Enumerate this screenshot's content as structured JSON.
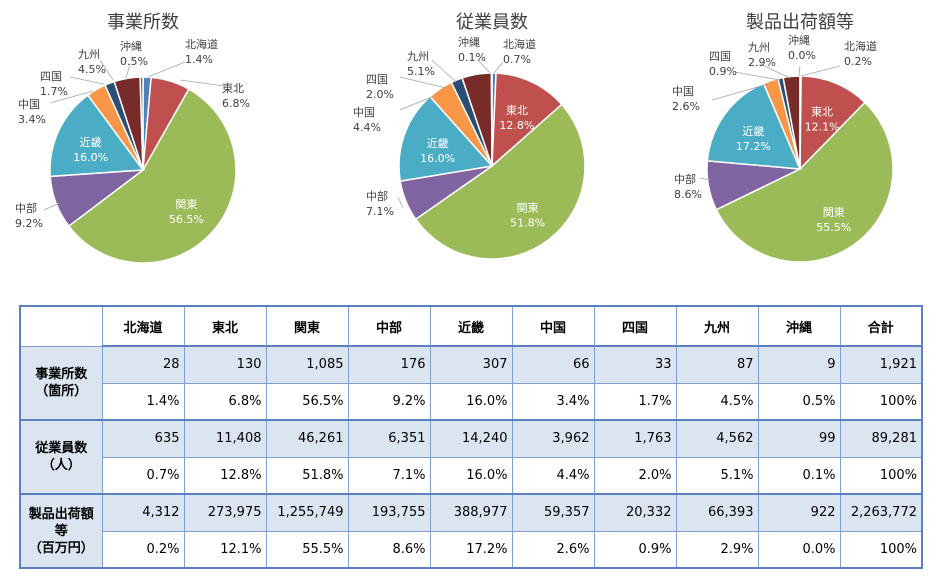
{
  "colors": {
    "北海道": "#4f81bd",
    "東北": "#c0504d",
    "関東": "#9bbb59",
    "中部": "#8064a2",
    "近畿": "#4bacc6",
    "中国": "#f79646",
    "四国": "#2c4d75",
    "九州": "#772c2a",
    "沖縄": "#5f7530"
  },
  "chart_data": [
    {
      "type": "pie",
      "title": "事業所数",
      "categories": [
        "北海道",
        "東北",
        "関東",
        "中部",
        "近畿",
        "中国",
        "四国",
        "九州",
        "沖縄"
      ],
      "values": [
        1.4,
        6.8,
        56.5,
        9.2,
        16.0,
        3.4,
        1.7,
        4.5,
        0.5
      ],
      "labels": [
        "1.4%",
        "6.8%",
        "56.5%",
        "9.2%",
        "16.0%",
        "3.4%",
        "1.7%",
        "4.5%",
        "0.5%"
      ]
    },
    {
      "type": "pie",
      "title": "従業員数",
      "categories": [
        "北海道",
        "東北",
        "関東",
        "中部",
        "近畿",
        "中国",
        "四国",
        "九州",
        "沖縄"
      ],
      "values": [
        0.7,
        12.8,
        51.8,
        7.1,
        16.0,
        4.4,
        2.0,
        5.1,
        0.1
      ],
      "labels": [
        "0.7%",
        "12.8%",
        "51.8%",
        "7.1%",
        "16.0%",
        "4.4%",
        "2.0%",
        "5.1%",
        "0.1%"
      ]
    },
    {
      "type": "pie",
      "title": "製品出荷額等",
      "categories": [
        "北海道",
        "東北",
        "関東",
        "中部",
        "近畿",
        "中国",
        "四国",
        "九州",
        "沖縄"
      ],
      "values": [
        0.2,
        12.1,
        55.5,
        8.6,
        17.2,
        2.6,
        0.9,
        2.9,
        0.0
      ],
      "labels": [
        "0.2%",
        "12.1%",
        "55.5%",
        "8.6%",
        "17.2%",
        "2.6%",
        "0.9%",
        "2.9%",
        "0.0%"
      ]
    }
  ],
  "table": {
    "headers": [
      "北海道",
      "東北",
      "関東",
      "中部",
      "近畿",
      "中国",
      "四国",
      "九州",
      "沖縄",
      "合計"
    ],
    "groups": [
      {
        "label_lines": [
          "事業所数",
          "（箇所）"
        ],
        "counts": [
          "28",
          "130",
          "1,085",
          "176",
          "307",
          "66",
          "33",
          "87",
          "9",
          "1,921"
        ],
        "percents": [
          "1.4%",
          "6.8%",
          "56.5%",
          "9.2%",
          "16.0%",
          "3.4%",
          "1.7%",
          "4.5%",
          "0.5%",
          "100%"
        ]
      },
      {
        "label_lines": [
          "従業員数",
          "（人）"
        ],
        "counts": [
          "635",
          "11,408",
          "46,261",
          "6,351",
          "14,240",
          "3,962",
          "1,763",
          "4,562",
          "99",
          "89,281"
        ],
        "percents": [
          "0.7%",
          "12.8%",
          "51.8%",
          "7.1%",
          "16.0%",
          "4.4%",
          "2.0%",
          "5.1%",
          "0.1%",
          "100%"
        ]
      },
      {
        "label_lines": [
          "製品出荷額",
          "等",
          "（百万円）"
        ],
        "counts": [
          "4,312",
          "273,975",
          "1,255,749",
          "193,755",
          "388,977",
          "59,357",
          "20,332",
          "66,393",
          "922",
          "2,263,772"
        ],
        "percents": [
          "0.2%",
          "12.1%",
          "55.5%",
          "8.6%",
          "17.2%",
          "2.6%",
          "0.9%",
          "2.9%",
          "0.0%",
          "100%"
        ]
      }
    ]
  }
}
